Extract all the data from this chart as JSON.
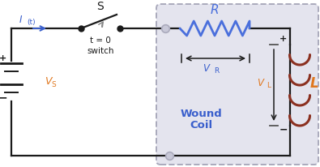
{
  "bg_color": "#ffffff",
  "box_color": "#aaaabc",
  "box_fill": "#e4e4ee",
  "wire_color": "#1a1a1a",
  "resistor_color": "#4a6fdc",
  "inductor_color": "#8b3020",
  "label_blue": "#3a5fcc",
  "label_orange": "#e07820",
  "switch_label": "S",
  "time_label": "t = 0",
  "switch_sub": "switch",
  "R_label": "R",
  "L_label": "L",
  "VR_label": "V",
  "VR_sub": "R",
  "VL_label": "V",
  "VL_sub": "L",
  "VS_label": "V",
  "VS_sub": "S",
  "I_label": "I",
  "I_sub": "(t)",
  "wound_coil_line1": "Wound",
  "wound_coil_line2": "Coil",
  "plus_sign": "+",
  "minus_sign": "−"
}
